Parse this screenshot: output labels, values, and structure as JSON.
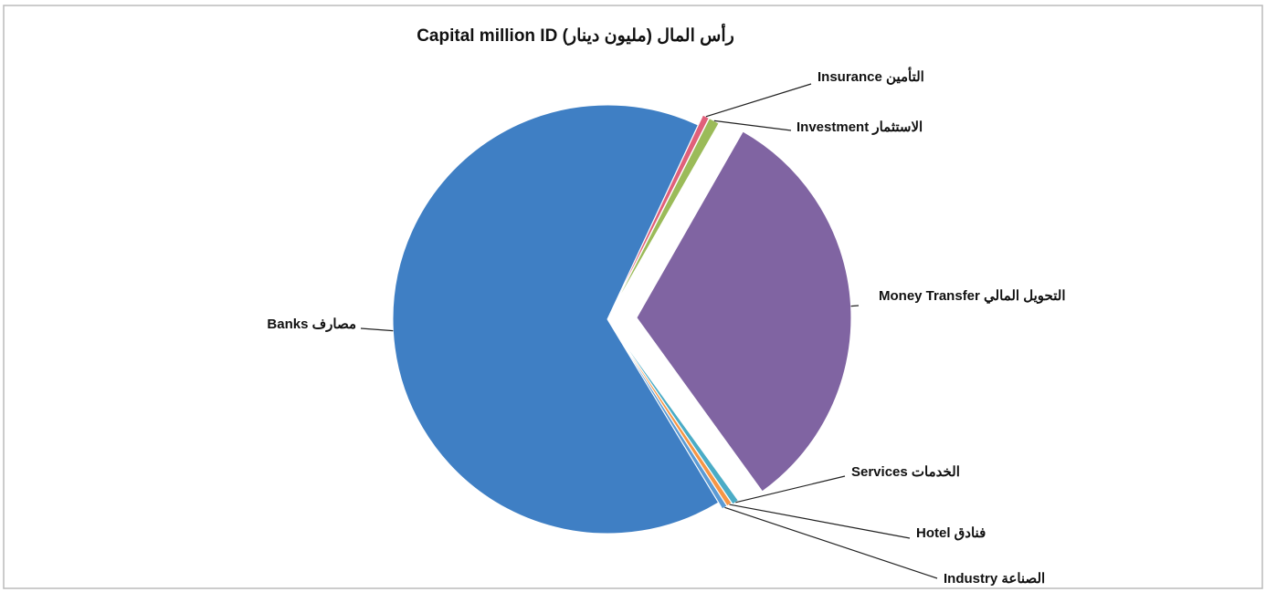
{
  "chart_data": {
    "type": "pie",
    "title": "Capital million ID (رأس المال (مليون دينار",
    "categories": [
      "Insurance التأمين",
      "Investment الاستثمار",
      "Money Transfer التحويل المالي",
      "Services الخدمات",
      "Hotel فنادق",
      "Industry الصناعة",
      "Banks مصارف"
    ],
    "values": [
      0.5,
      0.8,
      31.8,
      0.5,
      0.4,
      0.4,
      65.6
    ],
    "colors": [
      "#e0607a",
      "#9bbb59",
      "#8064a2",
      "#4bacc6",
      "#f79646",
      "#5b9bd5",
      "#3f7fc4"
    ]
  }
}
